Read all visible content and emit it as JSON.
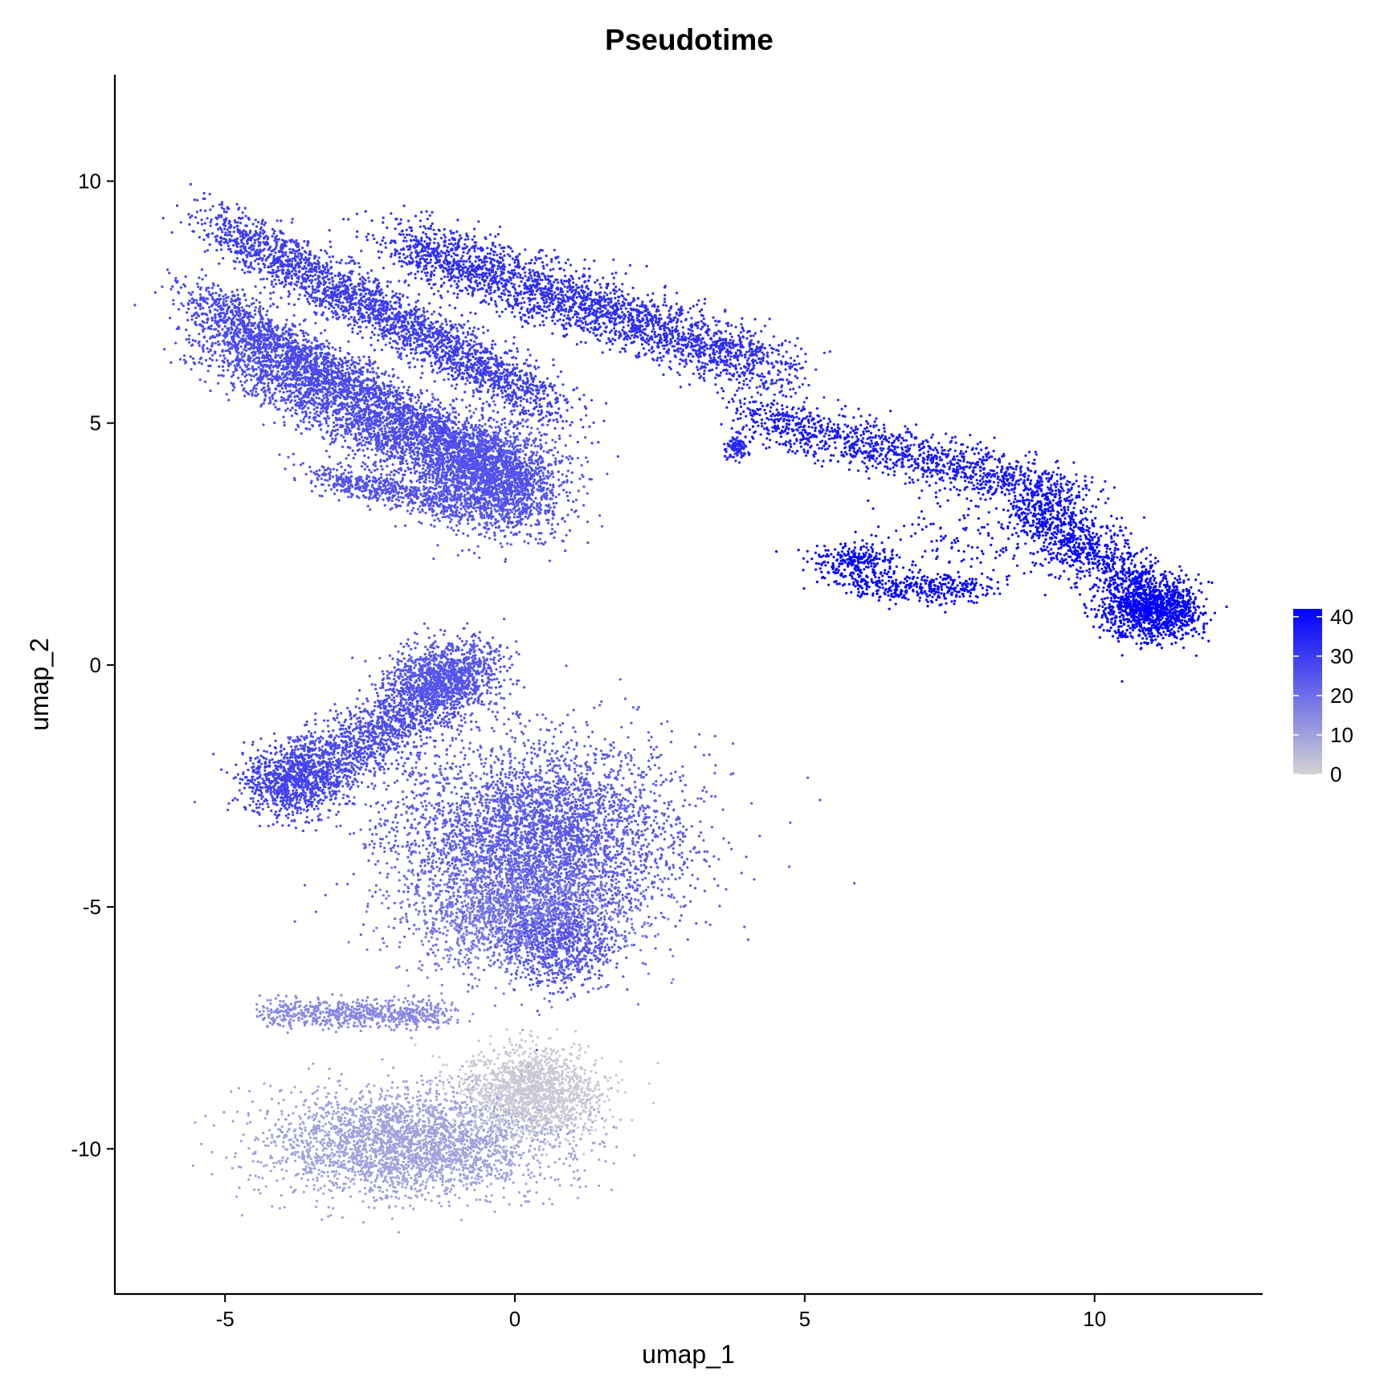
{
  "chart_data": {
    "type": "scatter",
    "title": "Pseudotime",
    "xlabel": "umap_1",
    "ylabel": "umap_2",
    "xlim": [
      -6.9,
      12.9
    ],
    "ylim": [
      -13.0,
      12.2
    ],
    "x_ticks": [
      -5,
      0,
      5,
      10
    ],
    "x_tick_labels": [
      "-5",
      "0",
      "5",
      "10"
    ],
    "y_ticks": [
      -10,
      -5,
      0,
      5,
      10
    ],
    "y_tick_labels": [
      "-10",
      "-5",
      "0",
      "5",
      "10"
    ],
    "grid": false,
    "legend_position": "right",
    "color_scale": {
      "variable": "pseudotime",
      "min": 0,
      "max": 42,
      "low_color": "#d3d3d3",
      "high_color": "#0000ff",
      "breaks": [
        0,
        10,
        20,
        30,
        40
      ],
      "break_labels": [
        "0",
        "10",
        "20",
        "30",
        "40"
      ]
    },
    "clusters": [
      {
        "description_key": "upper-left-band-top",
        "center": [
          -2.2,
          7.2
        ],
        "spread": [
          0.55,
          0.28
        ],
        "length": 6.5,
        "angle_deg": -33,
        "pseudotime": 30,
        "points": 2600
      },
      {
        "description_key": "upper-left-band-mid",
        "center": [
          -2.6,
          5.7
        ],
        "spread": [
          0.45,
          0.25
        ],
        "length": 6.5,
        "angle_deg": -33,
        "pseudotime": 28,
        "points": 2200
      },
      {
        "description_key": "upper-left-band-low",
        "center": [
          -2.5,
          5.0
        ],
        "spread": [
          0.6,
          0.35
        ],
        "length": 6.0,
        "angle_deg": -33,
        "pseudotime": 27,
        "points": 2600
      },
      {
        "description_key": "upper-left-blob",
        "center": [
          -0.4,
          3.9
        ],
        "spread": [
          0.6,
          0.6
        ],
        "length": 0.5,
        "angle_deg": 0,
        "pseudotime": 25,
        "points": 1500
      },
      {
        "description_key": "upper-left-tail",
        "center": [
          -2.2,
          3.6
        ],
        "spread": [
          0.35,
          0.15
        ],
        "length": 2.2,
        "angle_deg": -15,
        "pseudotime": 26,
        "points": 500
      },
      {
        "description_key": "upper-arm",
        "center": [
          1.3,
          7.4
        ],
        "spread": [
          0.45,
          0.32
        ],
        "length": 7.0,
        "angle_deg": -22,
        "pseudotime": 33,
        "points": 2600
      },
      {
        "description_key": "mid-arm",
        "center": [
          6.9,
          4.3
        ],
        "spread": [
          0.35,
          0.25
        ],
        "length": 5.8,
        "angle_deg": -16,
        "pseudotime": 37,
        "points": 1300
      },
      {
        "description_key": "right-arm",
        "center": [
          10.1,
          2.2
        ],
        "spread": [
          0.3,
          0.3
        ],
        "length": 3.4,
        "angle_deg": -40,
        "pseudotime": 40,
        "points": 1100
      },
      {
        "description_key": "right-tip",
        "center": [
          11.0,
          1.1
        ],
        "spread": [
          0.35,
          0.3
        ],
        "length": 0.8,
        "angle_deg": 0,
        "pseudotime": 42,
        "points": 900
      },
      {
        "description_key": "small-knot",
        "center": [
          3.85,
          4.5
        ],
        "spread": [
          0.1,
          0.12
        ],
        "length": 0.1,
        "angle_deg": 0,
        "pseudotime": 34,
        "points": 120
      },
      {
        "description_key": "loop-left",
        "center": [
          5.85,
          2.1
        ],
        "spread": [
          0.15,
          0.35
        ],
        "length": 0.5,
        "angle_deg": 90,
        "pseudotime": 41,
        "points": 260
      },
      {
        "description_key": "loop-bottom",
        "center": [
          7.0,
          1.6
        ],
        "spread": [
          0.3,
          0.15
        ],
        "length": 2.0,
        "angle_deg": 0,
        "pseudotime": 41,
        "points": 350
      },
      {
        "description_key": "loop-sparse",
        "center": [
          8.3,
          2.6
        ],
        "spread": [
          0.9,
          0.5
        ],
        "length": 1.5,
        "angle_deg": 0,
        "pseudotime": 39,
        "points": 200
      },
      {
        "description_key": "lower-left-arc",
        "center": [
          -2.4,
          -1.4
        ],
        "spread": [
          0.45,
          0.35
        ],
        "length": 3.6,
        "angle_deg": 35,
        "pseudotime": 27,
        "points": 1700
      },
      {
        "description_key": "lower-left-arc-tip",
        "center": [
          -1.2,
          -0.2
        ],
        "spread": [
          0.35,
          0.35
        ],
        "length": 1.2,
        "angle_deg": 20,
        "pseudotime": 25,
        "points": 900
      },
      {
        "description_key": "lower-left-hook",
        "center": [
          -3.9,
          -2.4
        ],
        "spread": [
          0.35,
          0.35
        ],
        "length": 0.8,
        "angle_deg": 0,
        "pseudotime": 29,
        "points": 700
      },
      {
        "description_key": "large-middle-blob",
        "center": [
          0.4,
          -3.6
        ],
        "spread": [
          1.2,
          1.0
        ],
        "length": 0.8,
        "angle_deg": 0,
        "pseudotime": 24,
        "points": 4200
      },
      {
        "description_key": "middle-blob-lower",
        "center": [
          0.0,
          -5.2
        ],
        "spread": [
          0.9,
          0.6
        ],
        "length": 1.0,
        "angle_deg": 0,
        "pseudotime": 18,
        "points": 1400
      },
      {
        "description_key": "middle-blob-right-drop",
        "center": [
          0.8,
          -5.8
        ],
        "spread": [
          0.45,
          0.45
        ],
        "length": 0.4,
        "angle_deg": 0,
        "pseudotime": 26,
        "points": 600
      },
      {
        "description_key": "bar-strip",
        "center": [
          -2.7,
          -7.2
        ],
        "spread": [
          0.2,
          0.15
        ],
        "length": 3.0,
        "angle_deg": 0,
        "pseudotime": 15,
        "points": 700
      },
      {
        "description_key": "bottom-blob",
        "center": [
          -1.8,
          -9.9
        ],
        "spread": [
          1.1,
          0.55
        ],
        "length": 2.0,
        "angle_deg": 0,
        "pseudotime": 10,
        "points": 2800
      },
      {
        "description_key": "bottom-blob-right",
        "center": [
          0.3,
          -8.8
        ],
        "spread": [
          0.55,
          0.45
        ],
        "length": 0.6,
        "angle_deg": 0,
        "pseudotime": 2,
        "points": 1500
      }
    ]
  }
}
